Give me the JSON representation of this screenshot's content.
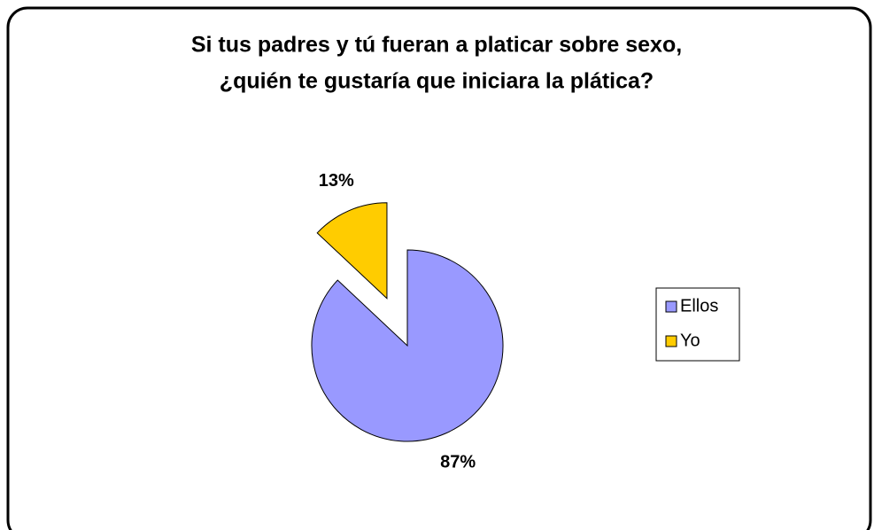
{
  "chart_data": {
    "type": "pie",
    "title": [
      "Si tus padres y tú fueran a platicar sobre sexo,",
      "¿quién te gustaría que iniciara la plática?"
    ],
    "categories": [
      "Ellos",
      "Yo"
    ],
    "values": [
      87,
      13
    ],
    "value_labels": [
      "87%",
      "13%"
    ],
    "colors": [
      "#9999ff",
      "#ffcc00"
    ],
    "legend": "right"
  }
}
